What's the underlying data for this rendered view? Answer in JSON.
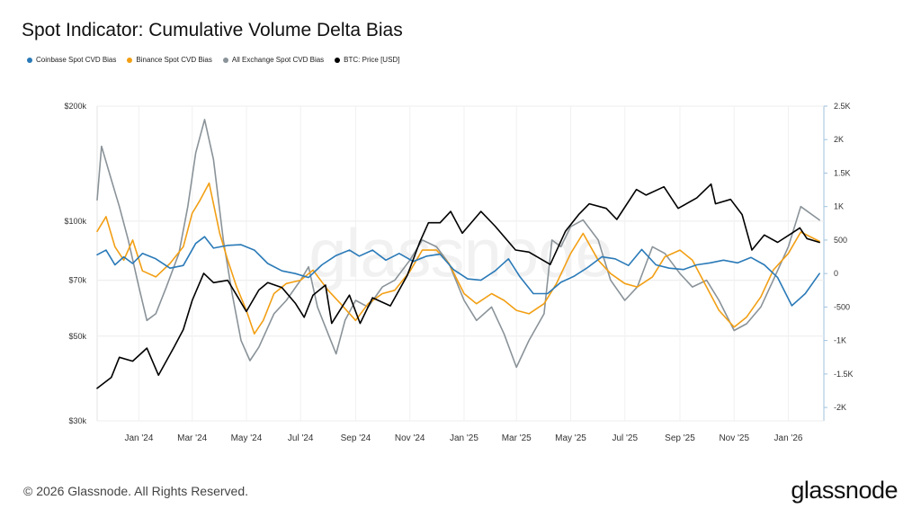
{
  "title": "Spot Indicator: Cumulative Volume Delta Bias",
  "footer": "© 2026 Glassnode. All Rights Reserved.",
  "brand": "glassnode",
  "watermark": "glassnode",
  "legend": [
    {
      "label": "Coinbase Spot CVD Bias",
      "color": "#2a7ab8"
    },
    {
      "label": "Binance Spot CVD Bias",
      "color": "#f29f14"
    },
    {
      "label": "All Exchange Spot CVD Bias",
      "color": "#8a9399"
    },
    {
      "label": "BTC: Price [USD]",
      "color": "#000000"
    }
  ],
  "chart_data": {
    "type": "line",
    "x_ticks": [
      "Jan '24",
      "Mar '24",
      "May '24",
      "Jul '24",
      "Sep '24",
      "Nov '24",
      "Jan '25",
      "Mar '25",
      "May '25",
      "Jul '25",
      "Sep '25",
      "Nov '25",
      "Jan '26"
    ],
    "x_range": [
      "2023-11-15",
      "2026-02-10"
    ],
    "y_left": {
      "scale": "log",
      "range": [
        30000,
        200000
      ],
      "ticks": [
        {
          "v": 30000,
          "label": "$30k"
        },
        {
          "v": 50000,
          "label": "$50k"
        },
        {
          "v": 70000,
          "label": "$70k"
        },
        {
          "v": 100000,
          "label": "$100k"
        },
        {
          "v": 200000,
          "label": "$200k"
        }
      ]
    },
    "y_right": {
      "scale": "linear",
      "range": [
        -2200,
        2500
      ],
      "ticks": [
        {
          "v": 2500,
          "label": "2.5K"
        },
        {
          "v": 2000,
          "label": "2K"
        },
        {
          "v": 1500,
          "label": "1.5K"
        },
        {
          "v": 1000,
          "label": "1K"
        },
        {
          "v": 500,
          "label": "500"
        },
        {
          "v": 0,
          "label": "0"
        },
        {
          "v": -500,
          "label": "-500"
        },
        {
          "v": -1000,
          "label": "-1K"
        },
        {
          "v": -1500,
          "label": "-1.5K"
        },
        {
          "v": -2000,
          "label": "-2K"
        }
      ]
    },
    "grid": true,
    "legend_position": "top-left",
    "series": [
      {
        "name": "Coinbase Spot CVD Bias",
        "axis": "right",
        "color": "#2a7ab8",
        "points": [
          [
            "2023-11-15",
            280
          ],
          [
            "2023-11-25",
            350
          ],
          [
            "2023-12-05",
            130
          ],
          [
            "2023-12-15",
            250
          ],
          [
            "2023-12-25",
            150
          ],
          [
            "2024-01-05",
            300
          ],
          [
            "2024-01-20",
            220
          ],
          [
            "2024-02-05",
            80
          ],
          [
            "2024-02-20",
            120
          ],
          [
            "2024-03-05",
            450
          ],
          [
            "2024-03-15",
            550
          ],
          [
            "2024-03-25",
            380
          ],
          [
            "2024-04-10",
            420
          ],
          [
            "2024-04-25",
            430
          ],
          [
            "2024-05-10",
            350
          ],
          [
            "2024-05-25",
            150
          ],
          [
            "2024-06-10",
            40
          ],
          [
            "2024-06-25",
            0
          ],
          [
            "2024-07-10",
            -60
          ],
          [
            "2024-07-25",
            130
          ],
          [
            "2024-08-10",
            270
          ],
          [
            "2024-08-25",
            350
          ],
          [
            "2024-09-05",
            260
          ],
          [
            "2024-09-20",
            350
          ],
          [
            "2024-10-05",
            200
          ],
          [
            "2024-10-20",
            300
          ],
          [
            "2024-11-05",
            180
          ],
          [
            "2024-11-20",
            260
          ],
          [
            "2024-12-05",
            290
          ],
          [
            "2024-12-20",
            60
          ],
          [
            "2025-01-05",
            -80
          ],
          [
            "2025-01-20",
            -100
          ],
          [
            "2025-02-05",
            40
          ],
          [
            "2025-02-20",
            220
          ],
          [
            "2025-03-05",
            -50
          ],
          [
            "2025-03-20",
            -300
          ],
          [
            "2025-04-05",
            -300
          ],
          [
            "2025-04-20",
            -130
          ],
          [
            "2025-05-05",
            -40
          ],
          [
            "2025-05-20",
            90
          ],
          [
            "2025-06-05",
            250
          ],
          [
            "2025-06-20",
            220
          ],
          [
            "2025-07-05",
            120
          ],
          [
            "2025-07-20",
            360
          ],
          [
            "2025-08-05",
            130
          ],
          [
            "2025-08-20",
            80
          ],
          [
            "2025-09-05",
            60
          ],
          [
            "2025-09-20",
            130
          ],
          [
            "2025-10-05",
            160
          ],
          [
            "2025-10-20",
            200
          ],
          [
            "2025-11-05",
            160
          ],
          [
            "2025-11-20",
            240
          ],
          [
            "2025-12-05",
            130
          ],
          [
            "2025-12-20",
            -60
          ],
          [
            "2026-01-05",
            -480
          ],
          [
            "2026-01-20",
            -300
          ],
          [
            "2026-02-05",
            0
          ]
        ]
      },
      {
        "name": "Binance Spot CVD Bias",
        "axis": "right",
        "color": "#f29f14",
        "points": [
          [
            "2023-11-15",
            630
          ],
          [
            "2023-11-25",
            850
          ],
          [
            "2023-12-05",
            400
          ],
          [
            "2023-12-15",
            200
          ],
          [
            "2023-12-25",
            500
          ],
          [
            "2024-01-05",
            40
          ],
          [
            "2024-01-20",
            -50
          ],
          [
            "2024-02-05",
            150
          ],
          [
            "2024-02-20",
            400
          ],
          [
            "2024-03-01",
            900
          ],
          [
            "2024-03-10",
            1100
          ],
          [
            "2024-03-20",
            1350
          ],
          [
            "2024-04-01",
            600
          ],
          [
            "2024-04-10",
            200
          ],
          [
            "2024-04-20",
            -200
          ],
          [
            "2024-05-01",
            -550
          ],
          [
            "2024-05-10",
            -900
          ],
          [
            "2024-05-20",
            -700
          ],
          [
            "2024-06-01",
            -300
          ],
          [
            "2024-06-15",
            -150
          ],
          [
            "2024-07-01",
            -100
          ],
          [
            "2024-07-15",
            50
          ],
          [
            "2024-08-01",
            -250
          ],
          [
            "2024-08-15",
            -450
          ],
          [
            "2024-09-01",
            -700
          ],
          [
            "2024-09-15",
            -450
          ],
          [
            "2024-10-01",
            -300
          ],
          [
            "2024-10-15",
            -250
          ],
          [
            "2024-11-01",
            30
          ],
          [
            "2024-11-15",
            350
          ],
          [
            "2024-12-01",
            350
          ],
          [
            "2024-12-15",
            150
          ],
          [
            "2025-01-01",
            -300
          ],
          [
            "2025-01-15",
            -450
          ],
          [
            "2025-02-01",
            -300
          ],
          [
            "2025-02-15",
            -400
          ],
          [
            "2025-03-01",
            -550
          ],
          [
            "2025-03-15",
            -600
          ],
          [
            "2025-04-01",
            -450
          ],
          [
            "2025-04-15",
            -150
          ],
          [
            "2025-05-01",
            300
          ],
          [
            "2025-05-15",
            600
          ],
          [
            "2025-06-01",
            200
          ],
          [
            "2025-06-15",
            0
          ],
          [
            "2025-07-01",
            -150
          ],
          [
            "2025-07-15",
            -200
          ],
          [
            "2025-08-01",
            -50
          ],
          [
            "2025-08-15",
            250
          ],
          [
            "2025-09-01",
            350
          ],
          [
            "2025-09-15",
            200
          ],
          [
            "2025-10-01",
            -200
          ],
          [
            "2025-10-15",
            -550
          ],
          [
            "2025-11-01",
            -800
          ],
          [
            "2025-11-15",
            -650
          ],
          [
            "2025-12-01",
            -350
          ],
          [
            "2025-12-15",
            50
          ],
          [
            "2026-01-01",
            300
          ],
          [
            "2026-01-15",
            620
          ],
          [
            "2026-02-05",
            480
          ]
        ]
      },
      {
        "name": "All Exchange Spot CVD Bias",
        "axis": "right",
        "color": "#8a9399",
        "points": [
          [
            "2023-11-15",
            1100
          ],
          [
            "2023-11-20",
            1900
          ],
          [
            "2023-12-01",
            1400
          ],
          [
            "2023-12-10",
            1000
          ],
          [
            "2023-12-20",
            500
          ],
          [
            "2024-01-01",
            -200
          ],
          [
            "2024-01-10",
            -700
          ],
          [
            "2024-01-20",
            -600
          ],
          [
            "2024-02-01",
            -200
          ],
          [
            "2024-02-15",
            300
          ],
          [
            "2024-02-25",
            1000
          ],
          [
            "2024-03-05",
            1800
          ],
          [
            "2024-03-15",
            2300
          ],
          [
            "2024-03-25",
            1700
          ],
          [
            "2024-04-05",
            500
          ],
          [
            "2024-04-15",
            -300
          ],
          [
            "2024-04-25",
            -1000
          ],
          [
            "2024-05-05",
            -1300
          ],
          [
            "2024-05-15",
            -1100
          ],
          [
            "2024-06-01",
            -600
          ],
          [
            "2024-06-15",
            -400
          ],
          [
            "2024-07-01",
            -100
          ],
          [
            "2024-07-10",
            100
          ],
          [
            "2024-07-20",
            -500
          ],
          [
            "2024-08-01",
            -900
          ],
          [
            "2024-08-10",
            -1200
          ],
          [
            "2024-08-20",
            -700
          ],
          [
            "2024-09-01",
            -400
          ],
          [
            "2024-09-15",
            -500
          ],
          [
            "2024-10-01",
            -200
          ],
          [
            "2024-10-15",
            -100
          ],
          [
            "2024-11-01",
            200
          ],
          [
            "2024-11-15",
            500
          ],
          [
            "2024-12-01",
            400
          ],
          [
            "2024-12-15",
            150
          ],
          [
            "2025-01-01",
            -400
          ],
          [
            "2025-01-15",
            -700
          ],
          [
            "2025-02-01",
            -500
          ],
          [
            "2025-02-15",
            -900
          ],
          [
            "2025-03-01",
            -1400
          ],
          [
            "2025-03-15",
            -1000
          ],
          [
            "2025-04-01",
            -600
          ],
          [
            "2025-04-10",
            500
          ],
          [
            "2025-04-20",
            400
          ],
          [
            "2025-05-01",
            700
          ],
          [
            "2025-05-15",
            800
          ],
          [
            "2025-06-01",
            500
          ],
          [
            "2025-06-15",
            -100
          ],
          [
            "2025-07-01",
            -400
          ],
          [
            "2025-07-15",
            -200
          ],
          [
            "2025-08-01",
            400
          ],
          [
            "2025-08-15",
            300
          ],
          [
            "2025-09-01",
            0
          ],
          [
            "2025-09-15",
            -200
          ],
          [
            "2025-10-01",
            -100
          ],
          [
            "2025-10-15",
            -400
          ],
          [
            "2025-11-01",
            -850
          ],
          [
            "2025-11-15",
            -750
          ],
          [
            "2025-12-01",
            -500
          ],
          [
            "2025-12-15",
            -100
          ],
          [
            "2026-01-01",
            400
          ],
          [
            "2026-01-15",
            1000
          ],
          [
            "2026-02-05",
            800
          ]
        ]
      },
      {
        "name": "BTC: Price [USD]",
        "axis": "left",
        "color": "#000000",
        "points": [
          [
            "2023-11-15",
            36500
          ],
          [
            "2023-12-01",
            39000
          ],
          [
            "2023-12-10",
            44000
          ],
          [
            "2023-12-25",
            43000
          ],
          [
            "2024-01-10",
            46500
          ],
          [
            "2024-01-23",
            39500
          ],
          [
            "2024-02-10",
            47000
          ],
          [
            "2024-02-20",
            52000
          ],
          [
            "2024-03-01",
            62000
          ],
          [
            "2024-03-14",
            73000
          ],
          [
            "2024-03-25",
            69000
          ],
          [
            "2024-04-10",
            70000
          ],
          [
            "2024-04-20",
            64000
          ],
          [
            "2024-05-01",
            58000
          ],
          [
            "2024-05-15",
            66000
          ],
          [
            "2024-05-25",
            69000
          ],
          [
            "2024-06-10",
            67000
          ],
          [
            "2024-06-25",
            61000
          ],
          [
            "2024-07-05",
            56000
          ],
          [
            "2024-07-15",
            64000
          ],
          [
            "2024-07-29",
            68000
          ],
          [
            "2024-08-05",
            54000
          ],
          [
            "2024-08-25",
            64000
          ],
          [
            "2024-09-06",
            54000
          ],
          [
            "2024-09-20",
            63000
          ],
          [
            "2024-10-10",
            60000
          ],
          [
            "2024-10-29",
            72000
          ],
          [
            "2024-11-12",
            88000
          ],
          [
            "2024-11-22",
            99000
          ],
          [
            "2024-12-05",
            99000
          ],
          [
            "2024-12-17",
            106000
          ],
          [
            "2024-12-30",
            93000
          ],
          [
            "2025-01-20",
            106000
          ],
          [
            "2025-02-05",
            97000
          ],
          [
            "2025-02-28",
            84000
          ],
          [
            "2025-03-15",
            83000
          ],
          [
            "2025-04-08",
            77000
          ],
          [
            "2025-04-25",
            94000
          ],
          [
            "2025-05-10",
            104000
          ],
          [
            "2025-05-22",
            111000
          ],
          [
            "2025-06-10",
            108000
          ],
          [
            "2025-06-22",
            101000
          ],
          [
            "2025-07-14",
            121000
          ],
          [
            "2025-07-25",
            117000
          ],
          [
            "2025-08-14",
            123000
          ],
          [
            "2025-08-30",
            108000
          ],
          [
            "2025-09-20",
            115000
          ],
          [
            "2025-10-06",
            125000
          ],
          [
            "2025-10-11",
            111000
          ],
          [
            "2025-10-28",
            114000
          ],
          [
            "2025-11-10",
            104000
          ],
          [
            "2025-11-21",
            84000
          ],
          [
            "2025-12-05",
            92000
          ],
          [
            "2025-12-20",
            88000
          ],
          [
            "2026-01-05",
            93000
          ],
          [
            "2026-01-14",
            96000
          ],
          [
            "2026-01-22",
            90000
          ],
          [
            "2026-02-05",
            88000
          ]
        ]
      }
    ]
  }
}
